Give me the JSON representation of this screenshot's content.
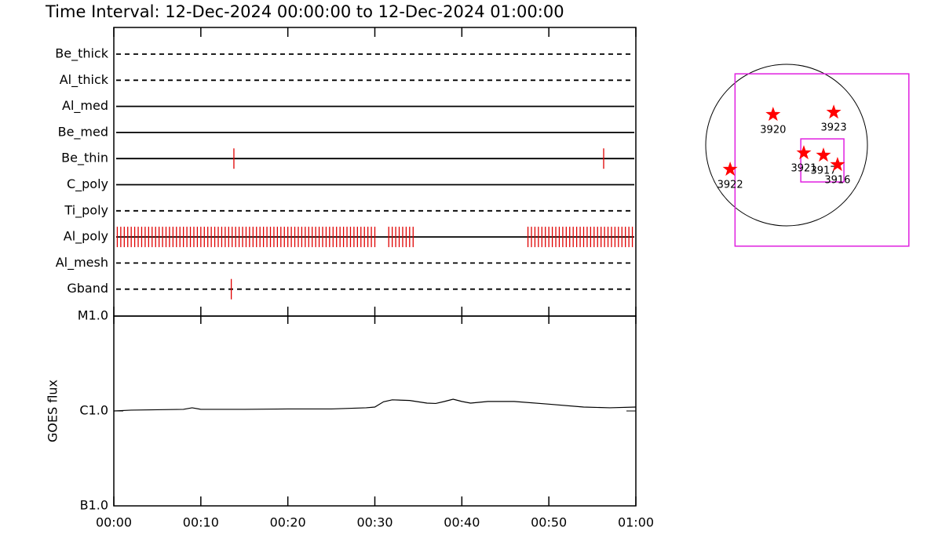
{
  "chart_data": [
    {
      "type": "timeline",
      "title": "Time Interval: 12-Dec-2024 00:00:00 to 12-Dec-2024 01:00:00",
      "event_color": "#e00000",
      "rows": [
        {
          "name": "Be_thick",
          "style": "dashed",
          "events": []
        },
        {
          "name": "Al_thick",
          "style": "dashed",
          "events": []
        },
        {
          "name": "Al_med",
          "style": "solid",
          "events": []
        },
        {
          "name": "Be_med",
          "style": "solid",
          "events": []
        },
        {
          "name": "Be_thin",
          "style": "solid",
          "events": [
            13.8,
            56.3
          ]
        },
        {
          "name": "C_poly",
          "style": "solid",
          "events": []
        },
        {
          "name": "Ti_poly",
          "style": "dashed",
          "events": []
        },
        {
          "name": "Al_poly",
          "style": "solid",
          "events": [
            0.4,
            0.8,
            1.2,
            1.6,
            2,
            2.4,
            2.8,
            3.2,
            3.6,
            4,
            4.4,
            4.8,
            5.2,
            5.6,
            6,
            6.4,
            6.8,
            7.2,
            7.6,
            8,
            8.4,
            8.8,
            9.2,
            9.6,
            10,
            10.4,
            10.8,
            11.2,
            11.6,
            12,
            12.4,
            12.8,
            13.2,
            13.6,
            14,
            14.4,
            14.8,
            15.2,
            15.6,
            16,
            16.4,
            16.8,
            17.2,
            17.6,
            18,
            18.4,
            18.8,
            19.2,
            19.6,
            20,
            20.4,
            20.8,
            21.2,
            21.6,
            22,
            22.4,
            22.8,
            23.2,
            23.6,
            24,
            24.4,
            24.8,
            25.2,
            25.6,
            26,
            26.4,
            26.8,
            27.2,
            27.6,
            28,
            28.4,
            28.8,
            29.2,
            29.6,
            30,
            31.6,
            32,
            32.4,
            32.8,
            33.2,
            33.6,
            34,
            34.4,
            47.6,
            48,
            48.4,
            48.8,
            49.2,
            49.6,
            50,
            50.4,
            50.8,
            51.2,
            51.6,
            52,
            52.4,
            52.8,
            53.2,
            53.6,
            54,
            54.4,
            54.8,
            55.2,
            55.6,
            56,
            56.4,
            56.8,
            57.2,
            57.6,
            58,
            58.4,
            58.8,
            59.2,
            59.6
          ]
        },
        {
          "name": "Al_mesh",
          "style": "dashed",
          "events": []
        },
        {
          "name": "Gband",
          "style": "dashed",
          "events": [
            13.5
          ]
        }
      ]
    },
    {
      "type": "line",
      "ylabel": "GOES flux",
      "color": "#000000",
      "ylog": true,
      "x": [
        0,
        2,
        5,
        8,
        9,
        10,
        15,
        20,
        25,
        29,
        30,
        31,
        32,
        34,
        36,
        37,
        38,
        39,
        40,
        41,
        43,
        46,
        50,
        54,
        57,
        60
      ],
      "values": [
        1e-06,
        1.02e-06,
        1.03e-06,
        1.04e-06,
        1.08e-06,
        1.04e-06,
        1.04e-06,
        1.05e-06,
        1.05e-06,
        1.08e-06,
        1.1e-06,
        1.25e-06,
        1.31e-06,
        1.29e-06,
        1.21e-06,
        1.2e-06,
        1.26e-06,
        1.33e-06,
        1.26e-06,
        1.21e-06,
        1.26e-06,
        1.26e-06,
        1.18e-06,
        1.1e-06,
        1.08e-06,
        1.1e-06
      ],
      "xlim": [
        0,
        60
      ],
      "xticks": [
        {
          "value": 0,
          "label": "00:00"
        },
        {
          "value": 10,
          "label": "00:10"
        },
        {
          "value": 20,
          "label": "00:20"
        },
        {
          "value": 30,
          "label": "00:30"
        },
        {
          "value": 40,
          "label": "00:40"
        },
        {
          "value": 50,
          "label": "00:50"
        },
        {
          "value": 60,
          "label": "01:00"
        }
      ],
      "ylim": [
        1e-07,
        1e-05
      ],
      "yticks": [
        {
          "value": 1e-07,
          "label": "B1.0"
        },
        {
          "value": 1e-06,
          "label": "C1.0"
        },
        {
          "value": 1e-05,
          "label": "M1.0"
        }
      ]
    },
    {
      "type": "map",
      "disk_radius": 960,
      "star_color": "#ff0000",
      "box_color": "#e020e0",
      "labels": [
        "3920",
        "3923",
        "3921",
        "3917",
        "3916",
        "3922"
      ],
      "x": [
        -160,
        560,
        205,
        438,
        605,
        -670
      ],
      "y": [
        363,
        390,
        -93,
        -121,
        -233,
        -289
      ],
      "boxes": [
        {
          "center": [
            420,
            -177
          ],
          "size": [
            2064,
            2048
          ]
        },
        {
          "center": [
            425,
            -182
          ],
          "size": [
            512,
            512
          ]
        }
      ]
    }
  ]
}
